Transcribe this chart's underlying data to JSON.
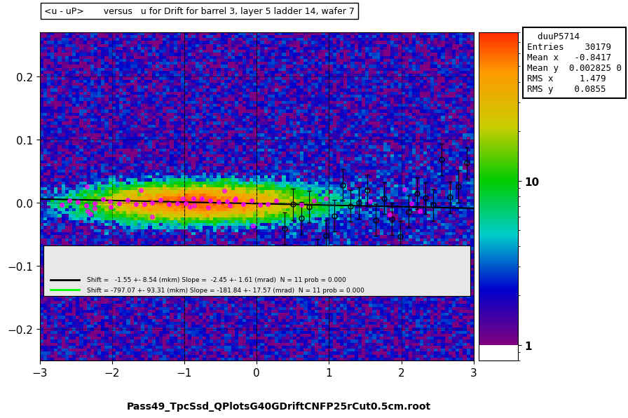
{
  "title": "<u - uP>       versus   u for Drift for barrel 3, layer 5 ladder 14, wafer 7",
  "xlabel": "Pass49_TpcSsd_QPlotsG40GDriftCNFP25rCut0.5cm.root",
  "ylabel": "",
  "xlim": [
    -3,
    3
  ],
  "ylim": [
    -0.25,
    0.27
  ],
  "stats_title": "duuP5714",
  "stats_entries": "30179",
  "stats_meanx": "-0.8417",
  "stats_meany": "0.002825 0",
  "stats_rmsx": "1.479",
  "stats_rmsy": "0.0855",
  "legend_line1": "Shift =   -1.55 +- 8.54 (mkm) Slope =  -2.45 +- 1.61 (mrad)  N = 11 prob = 0.000",
  "legend_line2": "Shift = -797.07 +- 93.31 (mkm) Slope = -181.84 +- 17.57 (mrad)  N = 11 prob = 0.000",
  "colorbar_ticks": [
    1,
    10
  ],
  "background_color": "#ffffff"
}
